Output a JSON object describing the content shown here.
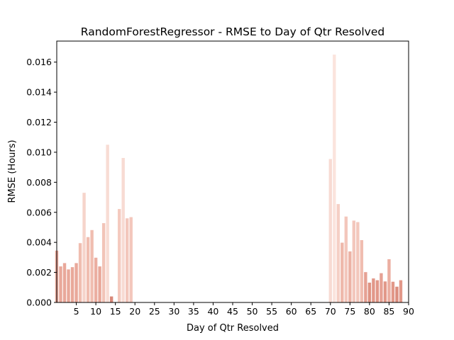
{
  "chart_data": {
    "type": "bar",
    "title": "RandomForestRegressor - RMSE to Day of Qtr Resolved",
    "xlabel": "Day of Qtr Resolved",
    "ylabel": "RMSE (Hours)",
    "xlim": [
      0,
      90
    ],
    "ylim": [
      0,
      0.0174
    ],
    "xticks": [
      5,
      10,
      15,
      20,
      25,
      30,
      35,
      40,
      45,
      50,
      55,
      60,
      65,
      70,
      75,
      80,
      85,
      90
    ],
    "yticks": [
      0.0,
      0.002,
      0.004,
      0.006,
      0.008,
      0.01,
      0.012,
      0.014,
      0.016
    ],
    "ytick_labels": [
      "0.000",
      "0.002",
      "0.004",
      "0.006",
      "0.008",
      "0.010",
      "0.012",
      "0.014",
      "0.016"
    ],
    "grid": false,
    "legend": "none",
    "bars": [
      {
        "x": 0,
        "value": 0.00345,
        "color": "#e9a89a"
      },
      {
        "x": 1,
        "value": 0.0024,
        "color": "#e9a89a"
      },
      {
        "x": 2,
        "value": 0.00262,
        "color": "#e9a89a"
      },
      {
        "x": 3,
        "value": 0.0022,
        "color": "#e9a89a"
      },
      {
        "x": 4,
        "value": 0.00235,
        "color": "#e9a89a"
      },
      {
        "x": 5,
        "value": 0.00262,
        "color": "#e9a89a"
      },
      {
        "x": 6,
        "value": 0.00395,
        "color": "#f0bdb0"
      },
      {
        "x": 7,
        "value": 0.0073,
        "color": "#f6d4cb"
      },
      {
        "x": 8,
        "value": 0.00435,
        "color": "#f0bdb0"
      },
      {
        "x": 9,
        "value": 0.00482,
        "color": "#f0bdb0"
      },
      {
        "x": 10,
        "value": 0.00298,
        "color": "#ebaea1"
      },
      {
        "x": 11,
        "value": 0.0024,
        "color": "#e9a89a"
      },
      {
        "x": 12,
        "value": 0.00528,
        "color": "#f2c4b8"
      },
      {
        "x": 13,
        "value": 0.0105,
        "color": "#f8dcd4"
      },
      {
        "x": 14,
        "value": 0.0004,
        "color": "#d9897a"
      },
      {
        "x": 16,
        "value": 0.00622,
        "color": "#f4cabf"
      },
      {
        "x": 17,
        "value": 0.00962,
        "color": "#f8dbd3"
      },
      {
        "x": 18,
        "value": 0.0056,
        "color": "#f3c7bc"
      },
      {
        "x": 19,
        "value": 0.00568,
        "color": "#f3c7bc"
      },
      {
        "x": 70,
        "value": 0.00955,
        "color": "#f8dbd3"
      },
      {
        "x": 71,
        "value": 0.0165,
        "color": "#fbe4dd"
      },
      {
        "x": 72,
        "value": 0.00655,
        "color": "#f5cfc5"
      },
      {
        "x": 73,
        "value": 0.00398,
        "color": "#eeb8aa"
      },
      {
        "x": 74,
        "value": 0.00572,
        "color": "#f3c7bc"
      },
      {
        "x": 75,
        "value": 0.0034,
        "color": "#ecb2a5"
      },
      {
        "x": 76,
        "value": 0.00545,
        "color": "#f3c7bc"
      },
      {
        "x": 77,
        "value": 0.00535,
        "color": "#f3c7bc"
      },
      {
        "x": 78,
        "value": 0.00415,
        "color": "#f0bdb0"
      },
      {
        "x": 79,
        "value": 0.00202,
        "color": "#e6a194"
      },
      {
        "x": 80,
        "value": 0.00132,
        "color": "#df9383"
      },
      {
        "x": 81,
        "value": 0.0016,
        "color": "#e29889"
      },
      {
        "x": 82,
        "value": 0.00148,
        "color": "#e29889"
      },
      {
        "x": 83,
        "value": 0.00195,
        "color": "#e6a194"
      },
      {
        "x": 84,
        "value": 0.0014,
        "color": "#e29889"
      },
      {
        "x": 85,
        "value": 0.00288,
        "color": "#ebaea1"
      },
      {
        "x": 86,
        "value": 0.00138,
        "color": "#e29889"
      },
      {
        "x": 87,
        "value": 0.00105,
        "color": "#dc8e7f"
      },
      {
        "x": 88,
        "value": 0.00148,
        "color": "#e29889"
      }
    ]
  }
}
